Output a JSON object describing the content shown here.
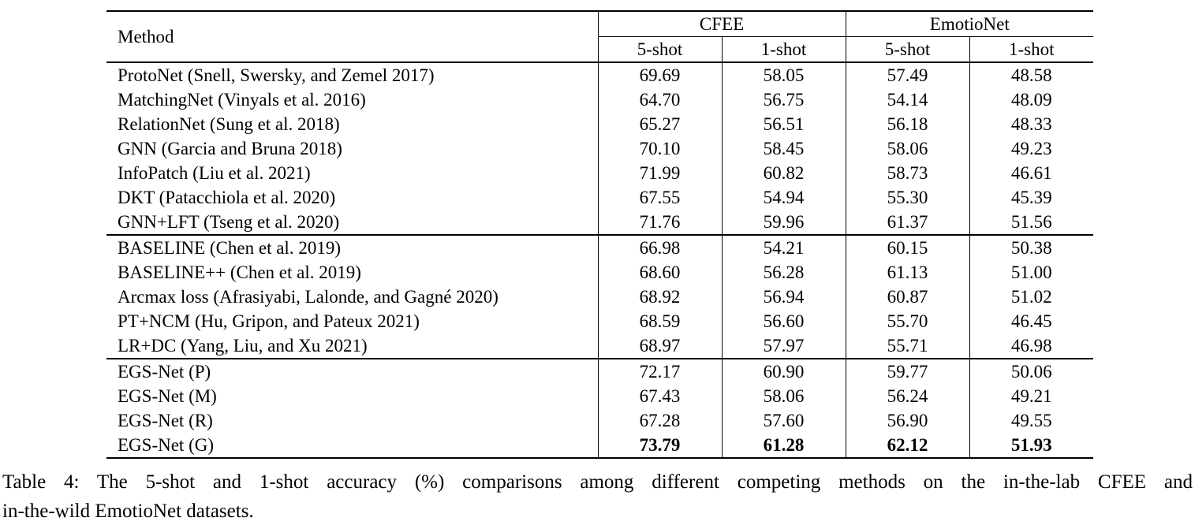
{
  "caption": {
    "line1": "Table 4: The 5-shot and 1-shot accuracy (%) comparisons among different competing methods on the in-the-lab CFEE and",
    "line2": "in-the-wild EmotioNet datasets."
  },
  "table": {
    "method_header": "Method",
    "group_headers": [
      {
        "label": "CFEE"
      },
      {
        "label": "EmotioNet"
      }
    ],
    "sub_headers": [
      "5-shot",
      "1-shot",
      "5-shot",
      "1-shot"
    ],
    "groups": [
      {
        "rows": [
          {
            "method": "ProtoNet (Snell, Swersky, and Zemel 2017)",
            "values": [
              "69.69",
              "58.05",
              "57.49",
              "48.58"
            ]
          },
          {
            "method": "MatchingNet (Vinyals et al. 2016)",
            "values": [
              "64.70",
              "56.75",
              "54.14",
              "48.09"
            ]
          },
          {
            "method": "RelationNet (Sung et al. 2018)",
            "values": [
              "65.27",
              "56.51",
              "56.18",
              "48.33"
            ]
          },
          {
            "method": "GNN (Garcia and Bruna 2018)",
            "values": [
              "70.10",
              "58.45",
              "58.06",
              "49.23"
            ]
          },
          {
            "method": "InfoPatch (Liu et al. 2021)",
            "values": [
              "71.99",
              "60.82",
              "58.73",
              "46.61"
            ]
          },
          {
            "method": "DKT (Patacchiola et al. 2020)",
            "values": [
              "67.55",
              "54.94",
              "55.30",
              "45.39"
            ]
          },
          {
            "method": "GNN+LFT (Tseng et al. 2020)",
            "values": [
              "71.76",
              "59.96",
              "61.37",
              "51.56"
            ]
          }
        ]
      },
      {
        "rows": [
          {
            "method": "BASELINE (Chen et al. 2019)",
            "values": [
              "66.98",
              "54.21",
              "60.15",
              "50.38"
            ]
          },
          {
            "method": "BASELINE++ (Chen et al. 2019)",
            "values": [
              "68.60",
              "56.28",
              "61.13",
              "51.00"
            ]
          },
          {
            "method": "Arcmax loss (Afrasiyabi, Lalonde, and Gagné 2020)",
            "values": [
              "68.92",
              "56.94",
              "60.87",
              "51.02"
            ]
          },
          {
            "method": "PT+NCM (Hu, Gripon, and Pateux 2021)",
            "values": [
              "68.59",
              "56.60",
              "55.70",
              "46.45"
            ]
          },
          {
            "method": "LR+DC (Yang, Liu, and Xu 2021)",
            "values": [
              "68.97",
              "57.97",
              "55.71",
              "46.98"
            ]
          }
        ]
      },
      {
        "rows": [
          {
            "method": "EGS-Net (P)",
            "values": [
              "72.17",
              "60.90",
              "59.77",
              "50.06"
            ]
          },
          {
            "method": "EGS-Net (M)",
            "values": [
              "67.43",
              "58.06",
              "56.24",
              "49.21"
            ]
          },
          {
            "method": "EGS-Net (R)",
            "values": [
              "67.28",
              "57.60",
              "56.90",
              "49.55"
            ]
          },
          {
            "method": "EGS-Net (G)",
            "values": [
              "73.79",
              "61.28",
              "62.12",
              "51.93"
            ],
            "bold_values": true
          }
        ]
      }
    ]
  }
}
